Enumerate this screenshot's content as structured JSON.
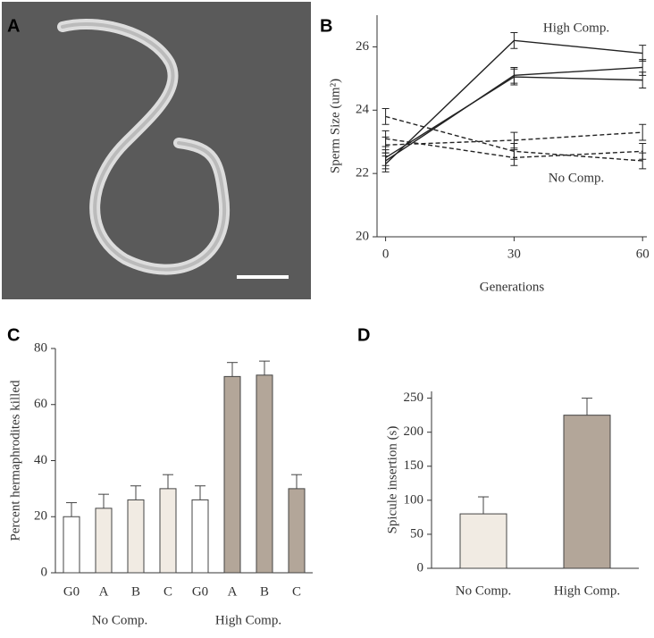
{
  "panel_labels": [
    "A",
    "B",
    "C",
    "D"
  ],
  "chart_data": [
    {
      "type": "line",
      "ylabel": "Sperm Size (um²)",
      "xlabel": "Generations",
      "x": [
        0,
        30,
        60
      ],
      "xlim": [
        -2,
        61
      ],
      "xticks": [
        0,
        30,
        60
      ],
      "ylim": [
        20,
        27
      ],
      "yticks": [
        20,
        22,
        24,
        26
      ],
      "annotations": [
        "High Comp.",
        "No Comp."
      ],
      "series": [
        {
          "color": "#222222",
          "dashed": false,
          "values": [
            22.3,
            26.2,
            25.8
          ],
          "errors": [
            0.25,
            0.25,
            0.25
          ]
        },
        {
          "color": "#222222",
          "dashed": false,
          "values": [
            22.4,
            25.1,
            25.35
          ],
          "errors": [
            0.25,
            0.25,
            0.25
          ]
        },
        {
          "color": "#222222",
          "dashed": false,
          "values": [
            22.5,
            25.05,
            24.95
          ],
          "errors": [
            0.25,
            0.25,
            0.25
          ]
        },
        {
          "color": "#222222",
          "dashed": true,
          "values": [
            23.8,
            22.7,
            22.4
          ],
          "errors": [
            0.25,
            0.25,
            0.25
          ]
        },
        {
          "color": "#222222",
          "dashed": true,
          "values": [
            22.9,
            23.05,
            23.3
          ],
          "errors": [
            0.25,
            0.25,
            0.25
          ]
        },
        {
          "color": "#222222",
          "dashed": true,
          "values": [
            23.1,
            22.5,
            22.7
          ],
          "errors": [
            0.25,
            0.25,
            0.25
          ]
        }
      ]
    },
    {
      "type": "bar",
      "ylabel": "Percent hermaphrodites killed",
      "categories": [
        "G0",
        "A",
        "B",
        "C",
        "G0",
        "A",
        "B",
        "C"
      ],
      "groups": [
        "No Comp.",
        "High Comp."
      ],
      "values": [
        20,
        23,
        26,
        30,
        26,
        70,
        70.5,
        30
      ],
      "errors": [
        5,
        5,
        5,
        5,
        5,
        5,
        5,
        5
      ],
      "colors": [
        "#ffffff",
        "#f1ebe3",
        "#f1ebe3",
        "#f1ebe3",
        "#ffffff",
        "#b3a699",
        "#b3a699",
        "#b3a699"
      ],
      "ylim": [
        0,
        80
      ],
      "yticks": [
        0,
        20,
        40,
        60,
        80
      ]
    },
    {
      "type": "bar",
      "ylabel": "Spicule insertion (s)",
      "categories": [
        "No Comp.",
        "High Comp."
      ],
      "values": [
        80,
        225
      ],
      "errors": [
        25,
        25
      ],
      "colors": [
        "#f1ebe3",
        "#b3a699"
      ],
      "ylim": [
        0,
        260
      ],
      "yticks": [
        0,
        50,
        100,
        150,
        200,
        250
      ]
    }
  ]
}
